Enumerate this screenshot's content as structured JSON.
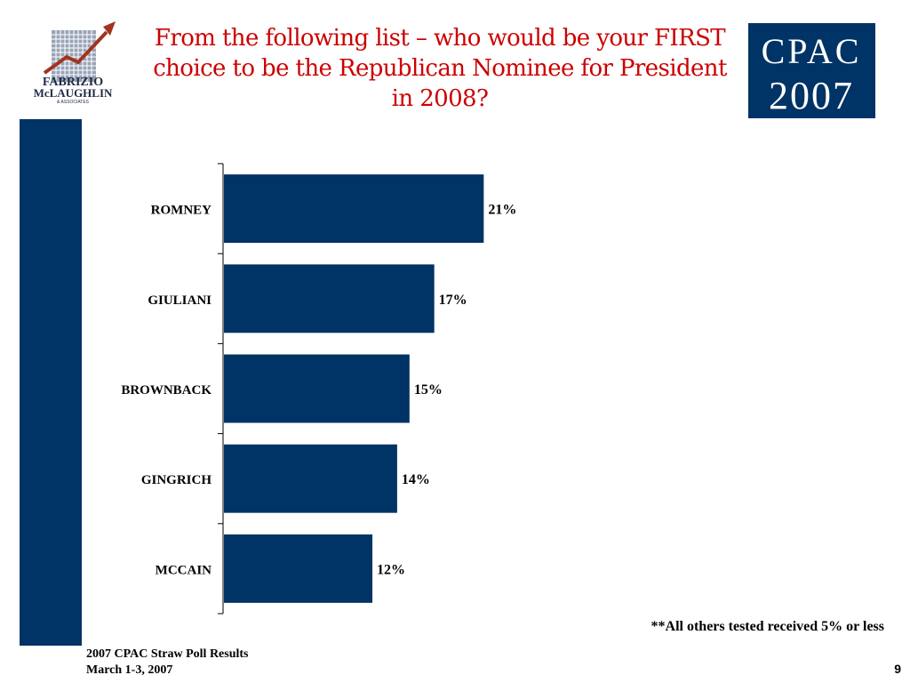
{
  "title": "From the following list – who would be your FIRST choice to be the Republican Nominee for President in 2008?",
  "logo_left": {
    "line1": "FABRIZIO",
    "line2": "McLAUGHLIN",
    "line3": "& ASSOCIATES"
  },
  "logo_right": {
    "line1": "CPAC",
    "line2": "2007",
    "bg": "#003366"
  },
  "chart_data": {
    "type": "bar",
    "orientation": "horizontal",
    "categories": [
      "ROMNEY",
      "GIULIANI",
      "BROWNBACK",
      "GINGRICH",
      "MCCAIN"
    ],
    "values": [
      21,
      17,
      15,
      14,
      12
    ],
    "data_labels": [
      "21%",
      "17%",
      "15%",
      "14%",
      "12%"
    ],
    "bar_color": "#003366",
    "title": "",
    "xlabel": "",
    "ylabel": "",
    "xlim": [
      0,
      38
    ]
  },
  "footnote": "**All others tested received 5% or less",
  "footer": {
    "line1": "2007 CPAC Straw Poll Results",
    "line2": "March 1-3, 2007"
  },
  "page_number": "9",
  "colors": {
    "title": "#cc0000",
    "accent": "#003366"
  }
}
